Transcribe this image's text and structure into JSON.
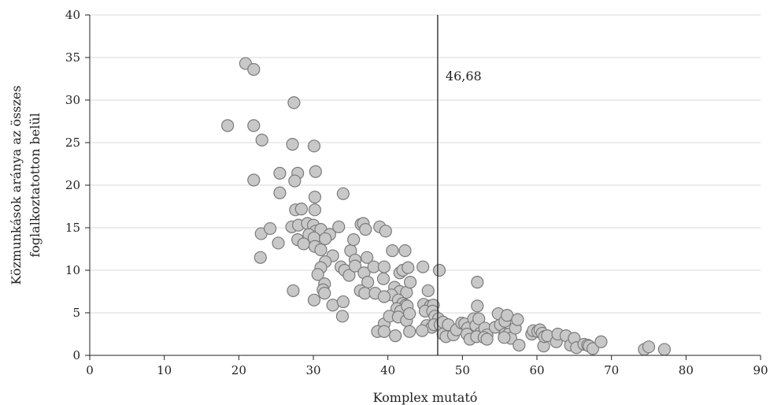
{
  "chart_data": {
    "type": "scatter",
    "title": "",
    "xlabel": "Komplex mutató",
    "ylabel_lines": [
      "Közmunkások aránya az összes",
      "foglalkoztatotton belül"
    ],
    "xlim": [
      0,
      90
    ],
    "ylim": [
      0,
      40
    ],
    "xticks": [
      0,
      10,
      20,
      30,
      40,
      50,
      60,
      70,
      80,
      90
    ],
    "yticks": [
      0,
      5,
      10,
      15,
      20,
      25,
      30,
      35,
      40
    ],
    "grid": "horizontal",
    "reference_line": {
      "x": 46.68,
      "label": "46,68"
    },
    "colors": {
      "marker_fill": "#c8c8c8",
      "marker_edge": "#7a7a7a",
      "grid": "#d9d9d9",
      "axis": "#222222"
    },
    "points": [
      [
        18.5,
        27.0
      ],
      [
        20.9,
        34.3
      ],
      [
        22.0,
        33.6
      ],
      [
        27.4,
        29.7
      ],
      [
        22.0,
        27.0
      ],
      [
        23.1,
        25.3
      ],
      [
        27.2,
        24.8
      ],
      [
        30.1,
        24.6
      ],
      [
        22.0,
        20.6
      ],
      [
        25.5,
        21.4
      ],
      [
        27.9,
        21.4
      ],
      [
        30.3,
        21.6
      ],
      [
        27.5,
        20.5
      ],
      [
        25.5,
        19.1
      ],
      [
        30.2,
        18.6
      ],
      [
        34.0,
        19.0
      ],
      [
        27.6,
        17.1
      ],
      [
        28.4,
        17.2
      ],
      [
        30.2,
        17.1
      ],
      [
        23.0,
        14.3
      ],
      [
        24.2,
        14.9
      ],
      [
        27.1,
        15.1
      ],
      [
        28.0,
        15.3
      ],
      [
        29.2,
        15.5
      ],
      [
        30.0,
        15.3
      ],
      [
        30.3,
        14.6
      ],
      [
        31.0,
        14.8
      ],
      [
        32.2,
        14.2
      ],
      [
        33.4,
        15.1
      ],
      [
        29.4,
        14.2
      ],
      [
        30.1,
        13.8
      ],
      [
        31.6,
        13.7
      ],
      [
        27.9,
        13.6
      ],
      [
        28.7,
        13.1
      ],
      [
        30.2,
        12.8
      ],
      [
        25.3,
        13.2
      ],
      [
        22.9,
        11.5
      ],
      [
        31.0,
        12.4
      ],
      [
        32.6,
        11.7
      ],
      [
        31.6,
        11.0
      ],
      [
        31.0,
        10.3
      ],
      [
        33.7,
        10.4
      ],
      [
        34.2,
        10.0
      ],
      [
        35.0,
        12.3
      ],
      [
        35.4,
        13.6
      ],
      [
        36.4,
        15.4
      ],
      [
        36.7,
        15.5
      ],
      [
        37.0,
        14.8
      ],
      [
        37.2,
        11.5
      ],
      [
        35.6,
        11.2
      ],
      [
        34.8,
        9.4
      ],
      [
        35.6,
        10.5
      ],
      [
        36.8,
        9.7
      ],
      [
        30.6,
        9.5
      ],
      [
        31.5,
        8.4
      ],
      [
        31.3,
        7.7
      ],
      [
        27.3,
        7.6
      ],
      [
        31.5,
        7.3
      ],
      [
        37.3,
        8.6
      ],
      [
        36.3,
        7.6
      ],
      [
        36.9,
        7.3
      ],
      [
        38.3,
        7.3
      ],
      [
        38.1,
        10.4
      ],
      [
        39.5,
        10.4
      ],
      [
        38.9,
        15.1
      ],
      [
        39.7,
        14.6
      ],
      [
        40.6,
        12.3
      ],
      [
        42.3,
        12.3
      ],
      [
        39.4,
        9.0
      ],
      [
        41.6,
        9.7
      ],
      [
        42.0,
        10.0
      ],
      [
        42.7,
        10.3
      ],
      [
        40.9,
        8.0
      ],
      [
        41.6,
        7.5
      ],
      [
        42.5,
        7.4
      ],
      [
        43.0,
        8.6
      ],
      [
        40.5,
        7.1
      ],
      [
        39.5,
        6.9
      ],
      [
        41.4,
        6.5
      ],
      [
        42.0,
        6.1
      ],
      [
        42.4,
        5.9
      ],
      [
        41.2,
        5.5
      ],
      [
        41.7,
        5.2
      ],
      [
        42.6,
        5.8
      ],
      [
        30.1,
        6.5
      ],
      [
        32.6,
        5.9
      ],
      [
        34.0,
        6.3
      ],
      [
        33.9,
        4.6
      ],
      [
        39.5,
        3.7
      ],
      [
        40.2,
        4.6
      ],
      [
        41.4,
        4.5
      ],
      [
        42.5,
        4.1
      ],
      [
        42.9,
        4.9
      ],
      [
        38.6,
        2.8
      ],
      [
        39.5,
        2.8
      ],
      [
        41.0,
        2.3
      ],
      [
        42.9,
        2.8
      ],
      [
        44.7,
        10.4
      ],
      [
        45.4,
        7.6
      ],
      [
        44.8,
        6.0
      ],
      [
        45.7,
        5.8
      ],
      [
        46.1,
        5.9
      ],
      [
        45.0,
        5.2
      ],
      [
        46.0,
        5.2
      ],
      [
        46.3,
        4.6
      ],
      [
        46.8,
        4.3
      ],
      [
        45.2,
        3.5
      ],
      [
        45.9,
        3.3
      ],
      [
        46.2,
        3.6
      ],
      [
        44.6,
        2.9
      ],
      [
        47.0,
        3.6
      ],
      [
        47.4,
        3.9
      ],
      [
        47.4,
        2.5
      ],
      [
        48.1,
        3.6
      ],
      [
        47.8,
        2.2
      ],
      [
        48.8,
        2.4
      ],
      [
        49.2,
        3.0
      ],
      [
        49.9,
        3.8
      ],
      [
        50.3,
        3.7
      ],
      [
        50.7,
        3.2
      ],
      [
        50.6,
        2.5
      ],
      [
        51.0,
        1.9
      ],
      [
        51.5,
        4.3
      ],
      [
        51.8,
        3.5
      ],
      [
        52.0,
        5.8
      ],
      [
        52.2,
        4.3
      ],
      [
        52.4,
        2.6
      ],
      [
        51.9,
        2.2
      ],
      [
        53.0,
        3.2
      ],
      [
        53.3,
        2.4
      ],
      [
        54.4,
        3.3
      ],
      [
        55.1,
        3.6
      ],
      [
        54.8,
        4.9
      ],
      [
        55.7,
        2.5
      ],
      [
        55.7,
        4.0
      ],
      [
        56.0,
        4.7
      ],
      [
        56.2,
        2.5
      ],
      [
        56.5,
        2.0
      ],
      [
        57.1,
        3.2
      ],
      [
        57.4,
        4.2
      ],
      [
        57.6,
        1.2
      ],
      [
        52.9,
        2.1
      ],
      [
        55.6,
        2.1
      ],
      [
        53.3,
        1.9
      ],
      [
        46.9,
        10.0
      ],
      [
        52.0,
        8.6
      ],
      [
        59.3,
        2.5
      ],
      [
        59.5,
        2.9
      ],
      [
        60.1,
        2.8
      ],
      [
        60.4,
        3.0
      ],
      [
        60.7,
        2.6
      ],
      [
        60.9,
        1.1
      ],
      [
        61.0,
        2.2
      ],
      [
        61.4,
        2.3
      ],
      [
        62.6,
        1.6
      ],
      [
        62.8,
        2.5
      ],
      [
        63.9,
        2.3
      ],
      [
        64.5,
        1.2
      ],
      [
        65.0,
        2.0
      ],
      [
        65.3,
        0.9
      ],
      [
        66.3,
        1.3
      ],
      [
        66.8,
        1.2
      ],
      [
        67.0,
        1.1
      ],
      [
        67.5,
        0.8
      ],
      [
        68.6,
        1.6
      ],
      [
        74.4,
        0.7
      ],
      [
        75.0,
        1.0
      ],
      [
        77.1,
        0.7
      ]
    ]
  }
}
